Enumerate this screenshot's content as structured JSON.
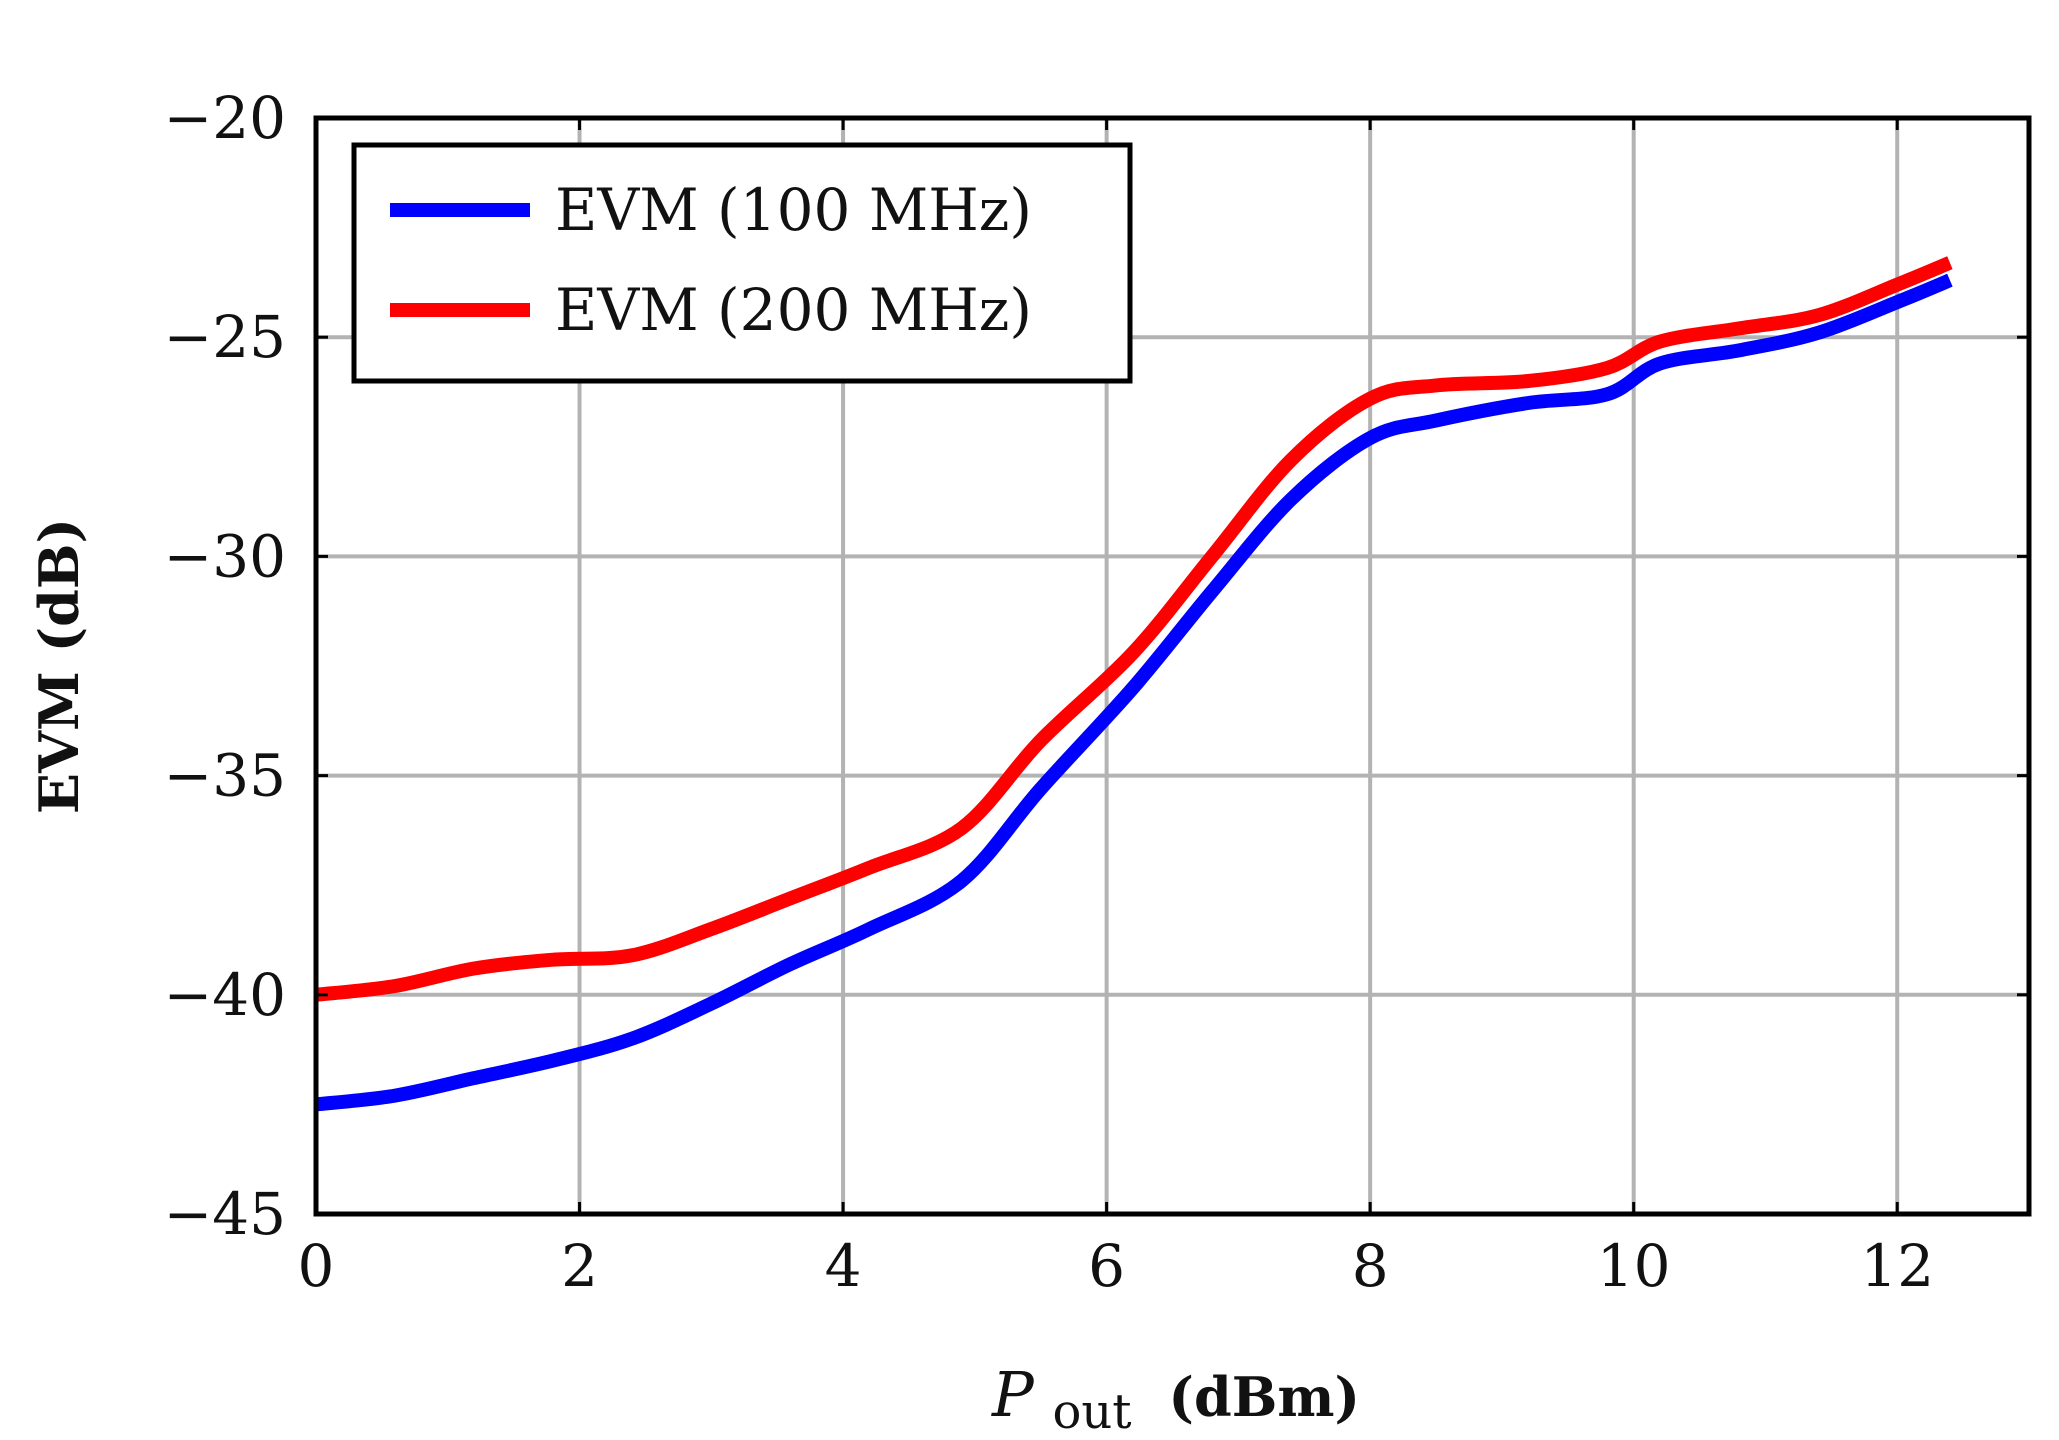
{
  "chart_data": {
    "type": "line",
    "title": "",
    "xlabel": {
      "symbol": "P",
      "subscript": "out",
      "unit": "(dBm)"
    },
    "ylabel": "EVM (dB)",
    "xlim": [
      0,
      13
    ],
    "ylim": [
      -45,
      -20
    ],
    "xticks": [
      0,
      2,
      4,
      6,
      8,
      10,
      12
    ],
    "xtick_labels": [
      "0",
      "2",
      "4",
      "6",
      "8",
      "10",
      "12"
    ],
    "yticks": [
      -45,
      -40,
      -35,
      -30,
      -25,
      -20
    ],
    "ytick_labels": [
      "−45",
      "−40",
      "−35",
      "−30",
      "−25",
      "−20"
    ],
    "grid": true,
    "legend_position": "top-left",
    "series": [
      {
        "name": "EVM (100 MHz)",
        "color": "#0000ff",
        "x": [
          0,
          0.6,
          1.2,
          1.8,
          2.4,
          3.0,
          3.6,
          4.2,
          4.9,
          5.5,
          6.2,
          6.8,
          7.4,
          8.0,
          8.5,
          9.2,
          9.8,
          10.2,
          10.8,
          11.4,
          12.0,
          12.4
        ],
        "values": [
          -42.5,
          -42.3,
          -41.9,
          -41.5,
          -41.0,
          -40.2,
          -39.3,
          -38.5,
          -37.4,
          -35.3,
          -33.0,
          -30.8,
          -28.7,
          -27.3,
          -26.9,
          -26.5,
          -26.3,
          -25.6,
          -25.3,
          -24.9,
          -24.2,
          -23.7
        ]
      },
      {
        "name": "EVM (200 MHz)",
        "color": "#ff0000",
        "x": [
          0,
          0.6,
          1.2,
          1.8,
          2.4,
          3.0,
          3.6,
          4.2,
          4.9,
          5.5,
          6.2,
          6.8,
          7.4,
          8.0,
          8.5,
          9.2,
          9.8,
          10.2,
          10.8,
          11.4,
          12.0,
          12.4
        ],
        "values": [
          -40.0,
          -39.8,
          -39.4,
          -39.2,
          -39.1,
          -38.5,
          -37.8,
          -37.1,
          -36.2,
          -34.2,
          -32.2,
          -30.0,
          -27.8,
          -26.4,
          -26.1,
          -26.0,
          -25.7,
          -25.1,
          -24.8,
          -24.5,
          -23.8,
          -23.3
        ]
      }
    ]
  }
}
